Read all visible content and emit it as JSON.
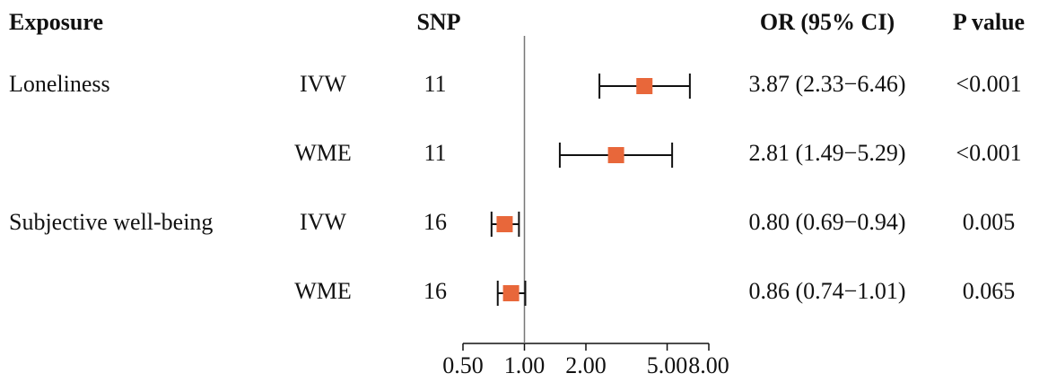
{
  "chart_data": {
    "type": "forest",
    "headers": {
      "exposure": "Exposure",
      "snp": "SNP",
      "or": "OR (95% CI)",
      "p": "P value"
    },
    "exposures": [
      "Loneliness",
      null,
      "Subjective well-being",
      null
    ],
    "categories": [
      "IVW",
      "WME",
      "IVW",
      "WME"
    ],
    "snp": [
      11,
      11,
      16,
      16
    ],
    "values": [
      3.87,
      2.81,
      0.8,
      0.86
    ],
    "lower": [
      2.33,
      1.49,
      0.69,
      0.74
    ],
    "upper": [
      6.46,
      5.29,
      0.94,
      1.01
    ],
    "value_labels": [
      "3.87 (2.33−6.46)",
      "2.81 (1.49−5.29)",
      "0.80 (0.69−0.94)",
      "0.86 (0.74−1.01)"
    ],
    "p_values": [
      "<0.001",
      "<0.001",
      "0.005",
      "0.065"
    ],
    "color": "#e8673a",
    "reference": 1,
    "log_x": true,
    "xlim": [
      0.5,
      8
    ],
    "xticks": [
      {
        "value": 0.5,
        "label": "0.50"
      },
      {
        "value": 1,
        "label": "1.00"
      },
      {
        "value": 2,
        "label": "2.00"
      },
      {
        "value": 5,
        "label": "5.00"
      },
      {
        "value": 8,
        "label": "8.00"
      }
    ]
  }
}
